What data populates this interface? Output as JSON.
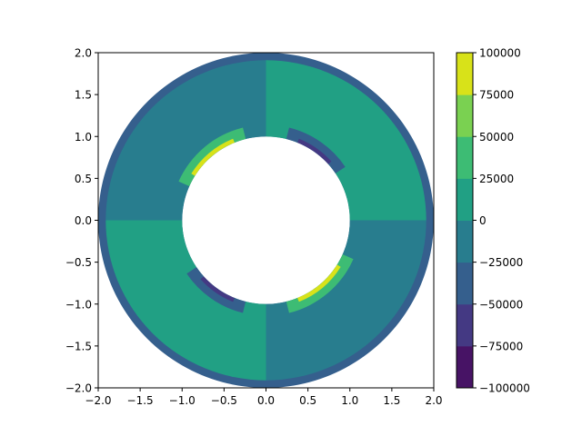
{
  "chart_data": {
    "type": "contourf",
    "title": "",
    "xlabel": "",
    "ylabel": "",
    "xlim": [
      -2.0,
      2.0
    ],
    "ylim": [
      -2.0,
      2.0
    ],
    "x_ticks": [
      "-2.0",
      "-1.5",
      "-1.0",
      "-0.5",
      "0.0",
      "0.5",
      "1.0",
      "1.5",
      "2.0"
    ],
    "y_ticks": [
      "-2.0",
      "-1.5",
      "-1.0",
      "-0.5",
      "0.0",
      "0.5",
      "1.0",
      "1.5",
      "2.0"
    ],
    "domain": {
      "shape": "annulus",
      "center": [
        0,
        0
      ],
      "inner_radius": 1.0,
      "outer_radius": 2.0
    },
    "levels": [
      -100000,
      -75000,
      -50000,
      -25000,
      0,
      25000,
      50000,
      75000,
      100000
    ],
    "colorbar": {
      "tick_labels": [
        "−100000",
        "−75000",
        "−50000",
        "−25000",
        "0",
        "25000",
        "50000",
        "75000",
        "100000"
      ],
      "colors": [
        "#471365",
        "#443983",
        "#355f8d",
        "#287d8e",
        "#21a084",
        "#3dbc74",
        "#7ad151",
        "#d8e219"
      ]
    },
    "regions": [
      {
        "angle_range_deg": [
          0,
          90
        ],
        "level_bin": [
          0,
          25000
        ]
      },
      {
        "angle_range_deg": [
          90,
          180
        ],
        "level_bin": [
          -25000,
          0
        ]
      },
      {
        "angle_range_deg": [
          180,
          270
        ],
        "level_bin": [
          0,
          25000
        ]
      },
      {
        "angle_range_deg": [
          270,
          360
        ],
        "level_bin": [
          -25000,
          0
        ]
      }
    ],
    "outer_rim_level_bin": [
      -50000,
      -25000
    ],
    "inner_edge_extremes": [
      {
        "angle_range_deg": [
          100,
          160
        ],
        "level_bin": [
          75000,
          100000
        ]
      },
      {
        "angle_range_deg": [
          280,
          340
        ],
        "level_bin": [
          75000,
          100000
        ]
      },
      {
        "angle_range_deg": [
          30,
          80
        ],
        "level_bin": [
          -75000,
          -50000
        ]
      },
      {
        "angle_range_deg": [
          210,
          260
        ],
        "level_bin": [
          -75000,
          -50000
        ]
      }
    ],
    "grid": false,
    "legend": "colorbar-right"
  }
}
